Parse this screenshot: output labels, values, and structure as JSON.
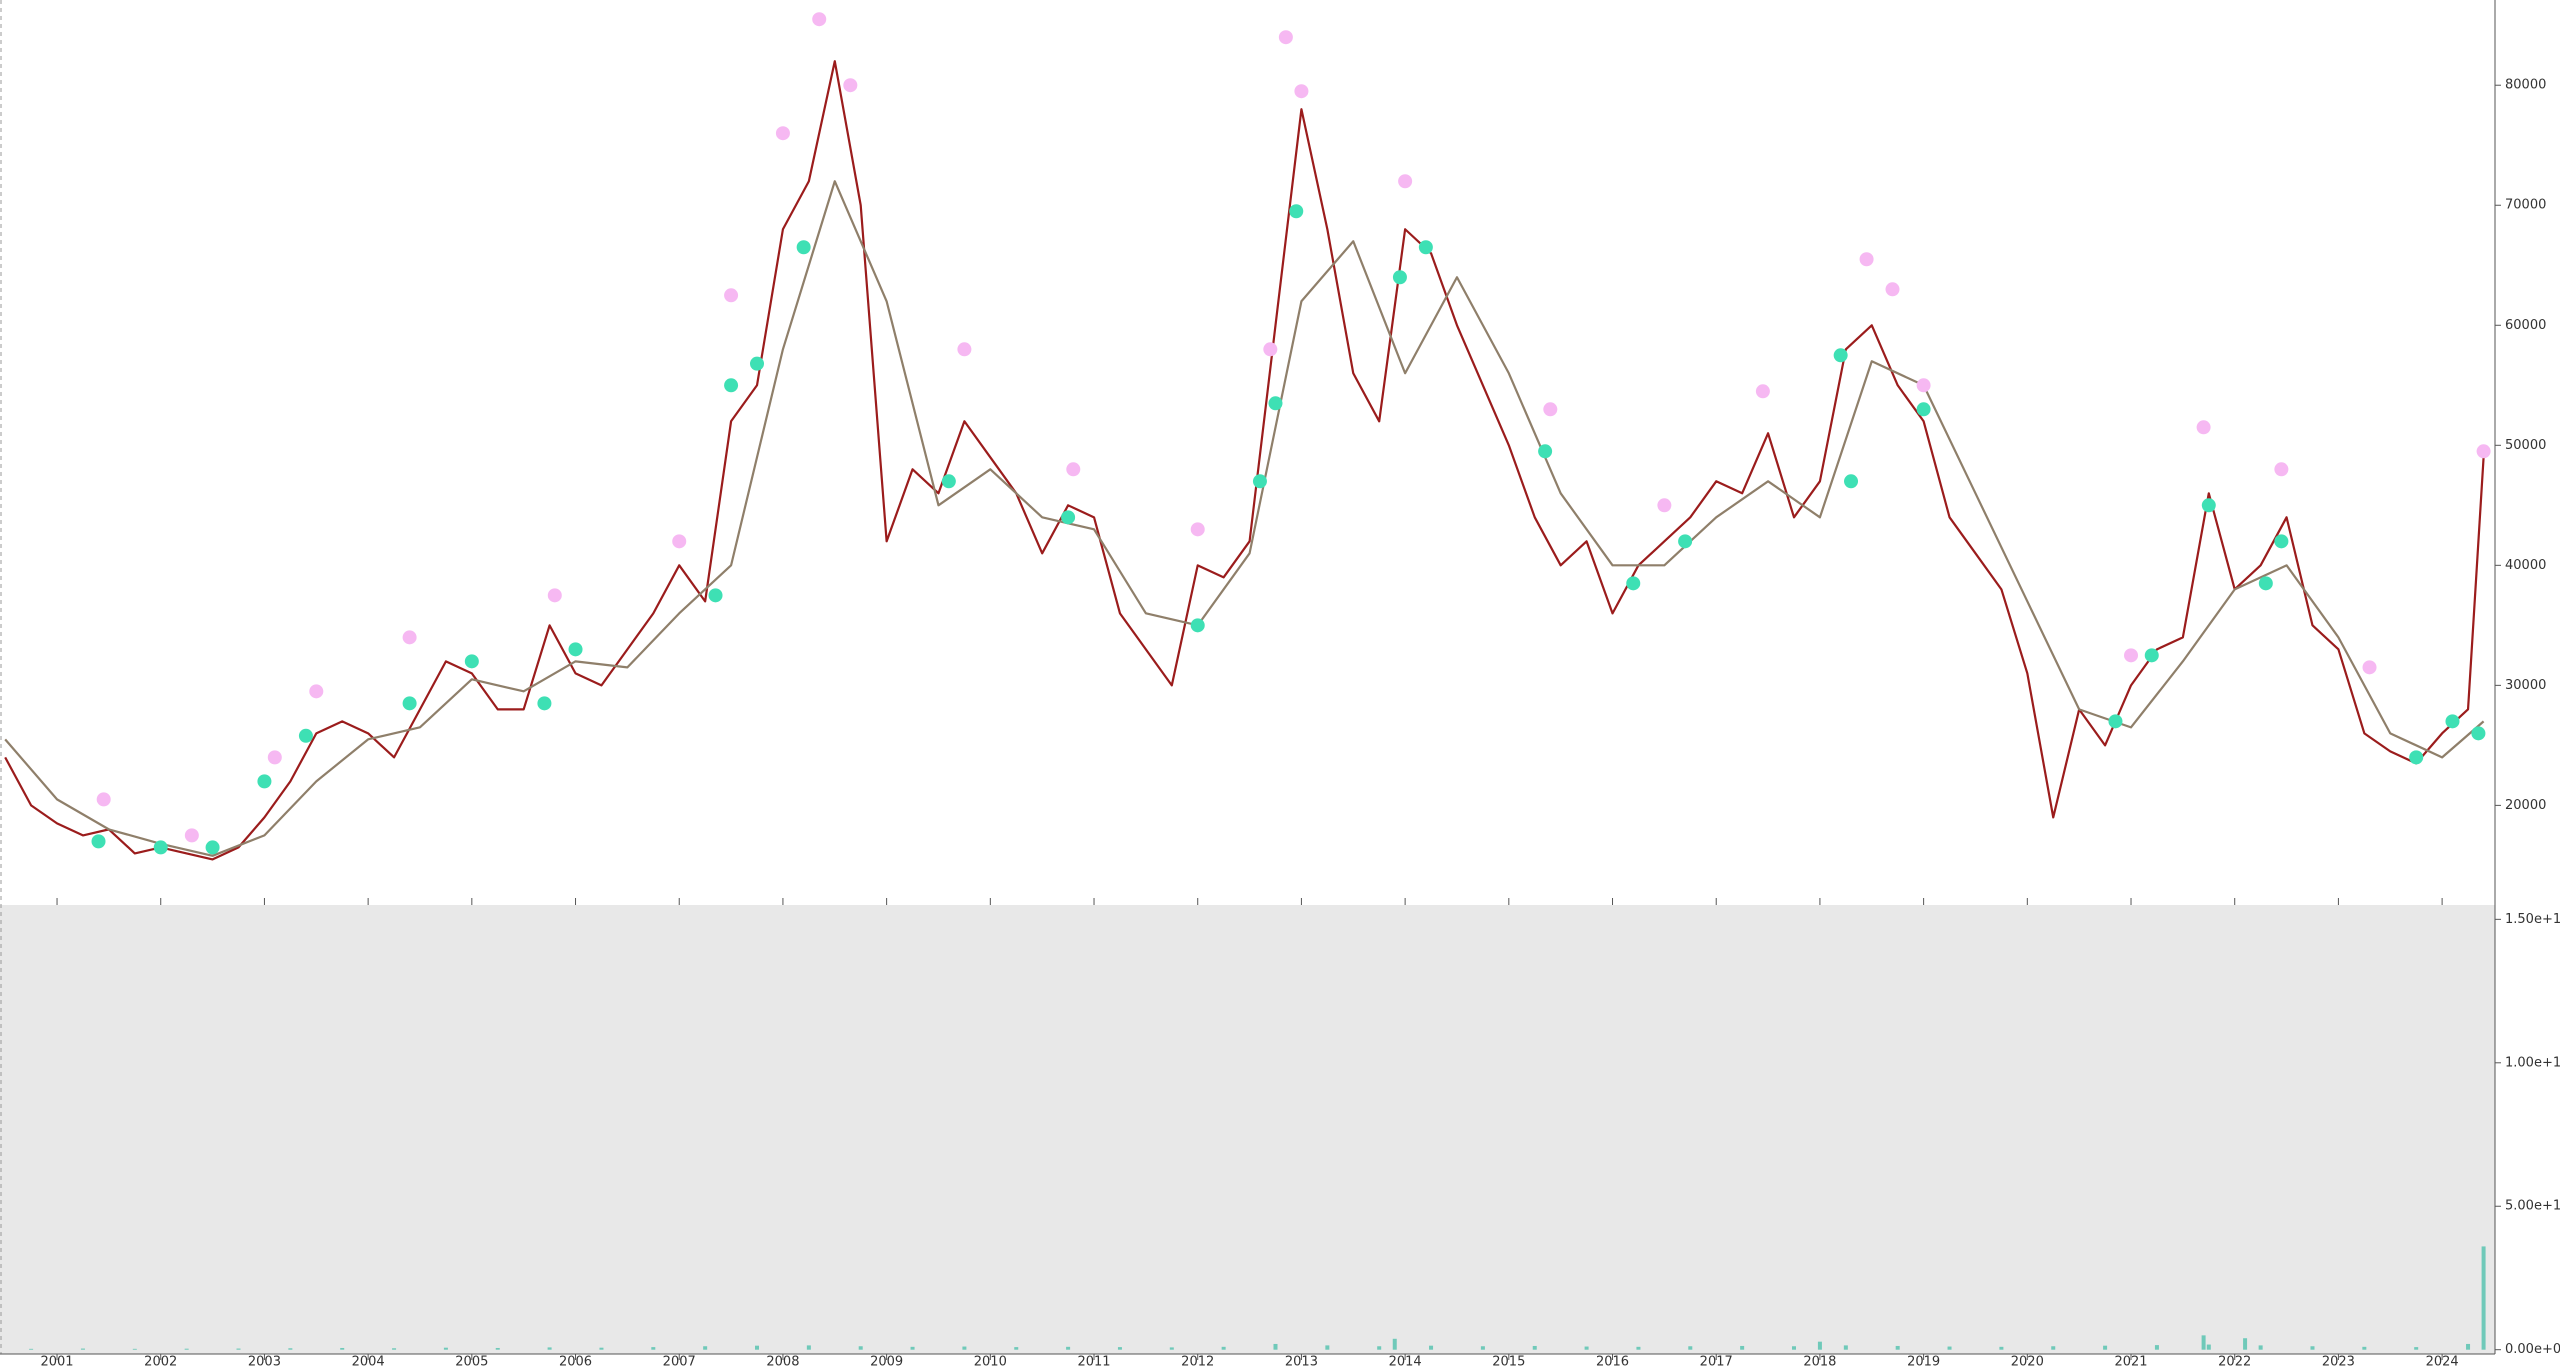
{
  "chart_data": [
    {
      "type": "line",
      "xlim": [
        2000.45,
        2024.51
      ],
      "ylim": [
        11700,
        87100
      ],
      "yticks": [
        20000,
        30000,
        40000,
        50000,
        60000,
        70000,
        80000
      ],
      "series": [
        {
          "style": "line",
          "color": "#9b1c1c",
          "x": [
            2000.5,
            2000.75,
            2001,
            2001.25,
            2001.5,
            2001.75,
            2002,
            2002.25,
            2002.5,
            2002.75,
            2003,
            2003.25,
            2003.5,
            2003.75,
            2004,
            2004.25,
            2004.5,
            2004.75,
            2005,
            2005.25,
            2005.5,
            2005.75,
            2006,
            2006.25,
            2006.5,
            2006.75,
            2007,
            2007.25,
            2007.5,
            2007.75,
            2008,
            2008.25,
            2008.5,
            2008.75,
            2009,
            2009.25,
            2009.5,
            2009.75,
            2010,
            2010.25,
            2010.5,
            2010.75,
            2011,
            2011.25,
            2011.5,
            2011.75,
            2012,
            2012.25,
            2012.5,
            2012.75,
            2013,
            2013.25,
            2013.5,
            2013.75,
            2014,
            2014.25,
            2014.5,
            2014.75,
            2015,
            2015.25,
            2015.5,
            2015.75,
            2016,
            2016.25,
            2016.5,
            2016.75,
            2017,
            2017.25,
            2017.5,
            2017.75,
            2018,
            2018.25,
            2018.5,
            2018.75,
            2019,
            2019.25,
            2019.5,
            2019.75,
            2020,
            2020.25,
            2020.5,
            2020.75,
            2021,
            2021.25,
            2021.5,
            2021.75,
            2022,
            2022.25,
            2022.5,
            2022.75,
            2023,
            2023.25,
            2023.5,
            2023.75,
            2024,
            2024.25,
            2024.4
          ],
          "values": [
            24000,
            20000,
            18500,
            17500,
            18000,
            16000,
            16500,
            16000,
            15500,
            16500,
            19000,
            22000,
            26000,
            27000,
            26000,
            24000,
            28000,
            32000,
            31000,
            28000,
            28000,
            35000,
            31000,
            30000,
            33000,
            36000,
            40000,
            37000,
            52000,
            55000,
            68000,
            72000,
            82000,
            70000,
            42000,
            48000,
            46000,
            52000,
            49000,
            46000,
            41000,
            45000,
            44000,
            36000,
            33000,
            30000,
            40000,
            39000,
            42000,
            60000,
            78000,
            68000,
            56000,
            52000,
            68000,
            66000,
            60000,
            55000,
            50000,
            44000,
            40000,
            42000,
            36000,
            40000,
            42000,
            44000,
            47000,
            46000,
            51000,
            44000,
            47000,
            58000,
            60000,
            55000,
            52000,
            44000,
            41000,
            38000,
            31000,
            19000,
            28000,
            25000,
            30000,
            33000,
            34000,
            46000,
            38000,
            40000,
            44000,
            35000,
            33000,
            26000,
            24500,
            23500,
            26000,
            28000,
            49000
          ]
        },
        {
          "style": "line",
          "color": "#8f7f6a",
          "x": [
            2000.5,
            2001,
            2001.5,
            2002,
            2002.5,
            2003,
            2003.5,
            2004,
            2004.5,
            2005,
            2005.5,
            2006,
            2006.5,
            2007,
            2007.5,
            2008,
            2008.5,
            2009,
            2009.5,
            2010,
            2010.5,
            2011,
            2011.5,
            2012,
            2012.5,
            2013,
            2013.5,
            2014,
            2014.5,
            2015,
            2015.5,
            2016,
            2016.5,
            2017,
            2017.5,
            2018,
            2018.5,
            2019,
            2019.5,
            2020,
            2020.5,
            2021,
            2021.5,
            2022,
            2022.5,
            2023,
            2023.5,
            2024,
            2024.4
          ],
          "values": [
            25500,
            20500,
            18000,
            16800,
            15800,
            17500,
            22000,
            25500,
            26500,
            30500,
            29500,
            32000,
            31500,
            36000,
            40000,
            58000,
            72000,
            62000,
            45000,
            48000,
            44000,
            43000,
            36000,
            35000,
            41000,
            62000,
            67000,
            56000,
            64000,
            56000,
            46000,
            40000,
            40000,
            44000,
            47000,
            44000,
            57000,
            55000,
            46000,
            37000,
            28000,
            26500,
            32000,
            38000,
            40000,
            34000,
            26000,
            24000,
            27000
          ]
        },
        {
          "style": "marker",
          "color": "#f6b8f2",
          "x": [
            2001.45,
            2002.3,
            2003.1,
            2003.5,
            2004.4,
            2005.8,
            2007.0,
            2007.5,
            2008.0,
            2008.35,
            2008.65,
            2009.75,
            2010.8,
            2012.0,
            2012.7,
            2012.85,
            2013.0,
            2014.0,
            2015.4,
            2016.5,
            2017.45,
            2018.45,
            2018.7,
            2019.0,
            2021.0,
            2021.7,
            2022.45,
            2023.3,
            2024.4
          ],
          "values": [
            20500,
            17500,
            24000,
            29500,
            34000,
            37500,
            42000,
            62500,
            76000,
            85500,
            80000,
            58000,
            48000,
            43000,
            58000,
            84000,
            79500,
            72000,
            53000,
            45000,
            54500,
            65500,
            63000,
            55000,
            32500,
            51500,
            48000,
            31500,
            49500
          ]
        },
        {
          "style": "marker",
          "color": "#3ee0b4",
          "x": [
            2001.4,
            2002.0,
            2002.5,
            2003.0,
            2003.4,
            2004.4,
            2005.0,
            2005.7,
            2006.0,
            2007.35,
            2007.5,
            2007.75,
            2008.2,
            2009.6,
            2010.75,
            2012.0,
            2012.6,
            2012.75,
            2012.95,
            2013.95,
            2014.2,
            2015.35,
            2016.2,
            2016.7,
            2018.2,
            2018.3,
            2019.0,
            2020.85,
            2021.2,
            2021.75,
            2022.3,
            2022.45,
            2023.75,
            2024.1,
            2024.35
          ],
          "values": [
            17000,
            16500,
            16500,
            22000,
            25800,
            28500,
            32000,
            28500,
            33000,
            37500,
            55000,
            56800,
            66500,
            47000,
            44000,
            35000,
            47000,
            53500,
            69500,
            64000,
            66500,
            49500,
            38500,
            42000,
            57500,
            47000,
            53000,
            27000,
            32500,
            45000,
            38500,
            42000,
            24000,
            27000,
            26000
          ]
        }
      ]
    },
    {
      "type": "bar",
      "xlim": [
        2000.45,
        2024.51
      ],
      "ylim": [
        -15000000000,
        1550000000000
      ],
      "xticks": [
        2001,
        2002,
        2003,
        2004,
        2005,
        2006,
        2007,
        2008,
        2009,
        2010,
        2011,
        2012,
        2013,
        2014,
        2015,
        2016,
        2017,
        2018,
        2019,
        2020,
        2021,
        2022,
        2023,
        2024
      ],
      "yticks": [
        {
          "value": 0,
          "label": "0.00e+00"
        },
        {
          "value": 500000000000,
          "label": "5.00e+11"
        },
        {
          "value": 1000000000000,
          "label": "1.00e+12"
        },
        {
          "value": 1500000000000,
          "label": "1.50e+12"
        }
      ],
      "color": "#6fc9b9",
      "x": [
        2000.75,
        2001.25,
        2001.75,
        2002.25,
        2002.75,
        2003.25,
        2003.75,
        2004.25,
        2004.75,
        2005.25,
        2005.75,
        2006.25,
        2006.75,
        2007.25,
        2007.75,
        2008.25,
        2008.75,
        2009.25,
        2009.75,
        2010.25,
        2010.75,
        2011.25,
        2011.75,
        2012.25,
        2012.75,
        2013.25,
        2013.75,
        2013.9,
        2014.25,
        2014.75,
        2015.25,
        2015.75,
        2016.25,
        2016.75,
        2017.25,
        2017.75,
        2018.0,
        2018.25,
        2018.75,
        2019.25,
        2019.75,
        2020.25,
        2020.75,
        2021.25,
        2021.7,
        2021.75,
        2022.1,
        2022.25,
        2022.75,
        2023.25,
        2023.75,
        2024.25,
        2024.4
      ],
      "values": [
        3000000000,
        4000000000,
        3000000000,
        3500000000,
        4000000000,
        5000000000,
        6000000000,
        5000000000,
        7000000000,
        6000000000,
        8000000000,
        7000000000,
        9000000000,
        12000000000,
        14000000000,
        15000000000,
        12000000000,
        10000000000,
        11000000000,
        9000000000,
        10000000000,
        9000000000,
        8000000000,
        10000000000,
        20000000000,
        15000000000,
        12000000000,
        38000000000,
        14000000000,
        12000000000,
        13000000000,
        11000000000,
        10000000000,
        12000000000,
        13000000000,
        12000000000,
        28000000000,
        15000000000,
        13000000000,
        11000000000,
        10000000000,
        12000000000,
        14000000000,
        16000000000,
        50000000000,
        18000000000,
        40000000000,
        15000000000,
        12000000000,
        10000000000,
        9000000000,
        20000000000,
        360000000000
      ]
    }
  ]
}
